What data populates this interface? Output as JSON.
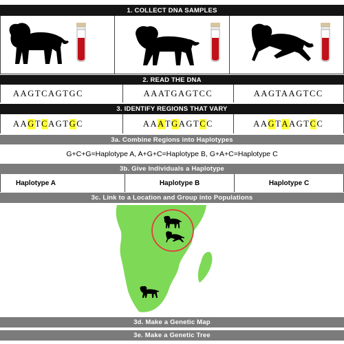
{
  "steps": {
    "s1": "1. COLLECT DNA SAMPLES",
    "s2": "2. READ THE DNA",
    "s3": "3. IDENTIFY REGIONS THAT VARY",
    "s3a": "3a. Combine Regions into Haplotypes",
    "s3b": "3b. Give Individuals a Haplotype",
    "s3c": "3c. Link to a Location and Group into Populations",
    "s3d": "3d. Make a Genetic Map",
    "s3e": "3e. Make a Genetic Tree"
  },
  "sequences": [
    "AAGTCAGTGC",
    "AAATGAGTCC",
    "AAGTAAGTCC"
  ],
  "highlighted_sequences": [
    [
      {
        "t": "AA",
        "h": false
      },
      {
        "t": "G",
        "h": true
      },
      {
        "t": "T",
        "h": false
      },
      {
        "t": "C",
        "h": true
      },
      {
        "t": "AGT",
        "h": false
      },
      {
        "t": "G",
        "h": true
      },
      {
        "t": "C",
        "h": false
      }
    ],
    [
      {
        "t": "AA",
        "h": false
      },
      {
        "t": "A",
        "h": true
      },
      {
        "t": "T",
        "h": false
      },
      {
        "t": "G",
        "h": true
      },
      {
        "t": "AGT",
        "h": false
      },
      {
        "t": "C",
        "h": true
      },
      {
        "t": "C",
        "h": false
      }
    ],
    [
      {
        "t": "AA",
        "h": false
      },
      {
        "t": "G",
        "h": true
      },
      {
        "t": "T",
        "h": false
      },
      {
        "t": "A",
        "h": true
      },
      {
        "t": "AGT",
        "h": false
      },
      {
        "t": "C",
        "h": true
      },
      {
        "t": "C",
        "h": false
      }
    ]
  ],
  "haplotype_rule": "G+C+G=Haplotype A,  A+G+C=Haplotype B, G+A+C=Haplotype C",
  "haplotypes": [
    "Haplotype A",
    "Haplotype B",
    "Haplotype C"
  ],
  "colors": {
    "dark_bar": "#141414",
    "gray_bar": "#7b7b7b",
    "highlight": "#ffff33",
    "map_green": "#7ed957",
    "tube_red": "#c0101a",
    "circle_red": "#e23b3b"
  }
}
